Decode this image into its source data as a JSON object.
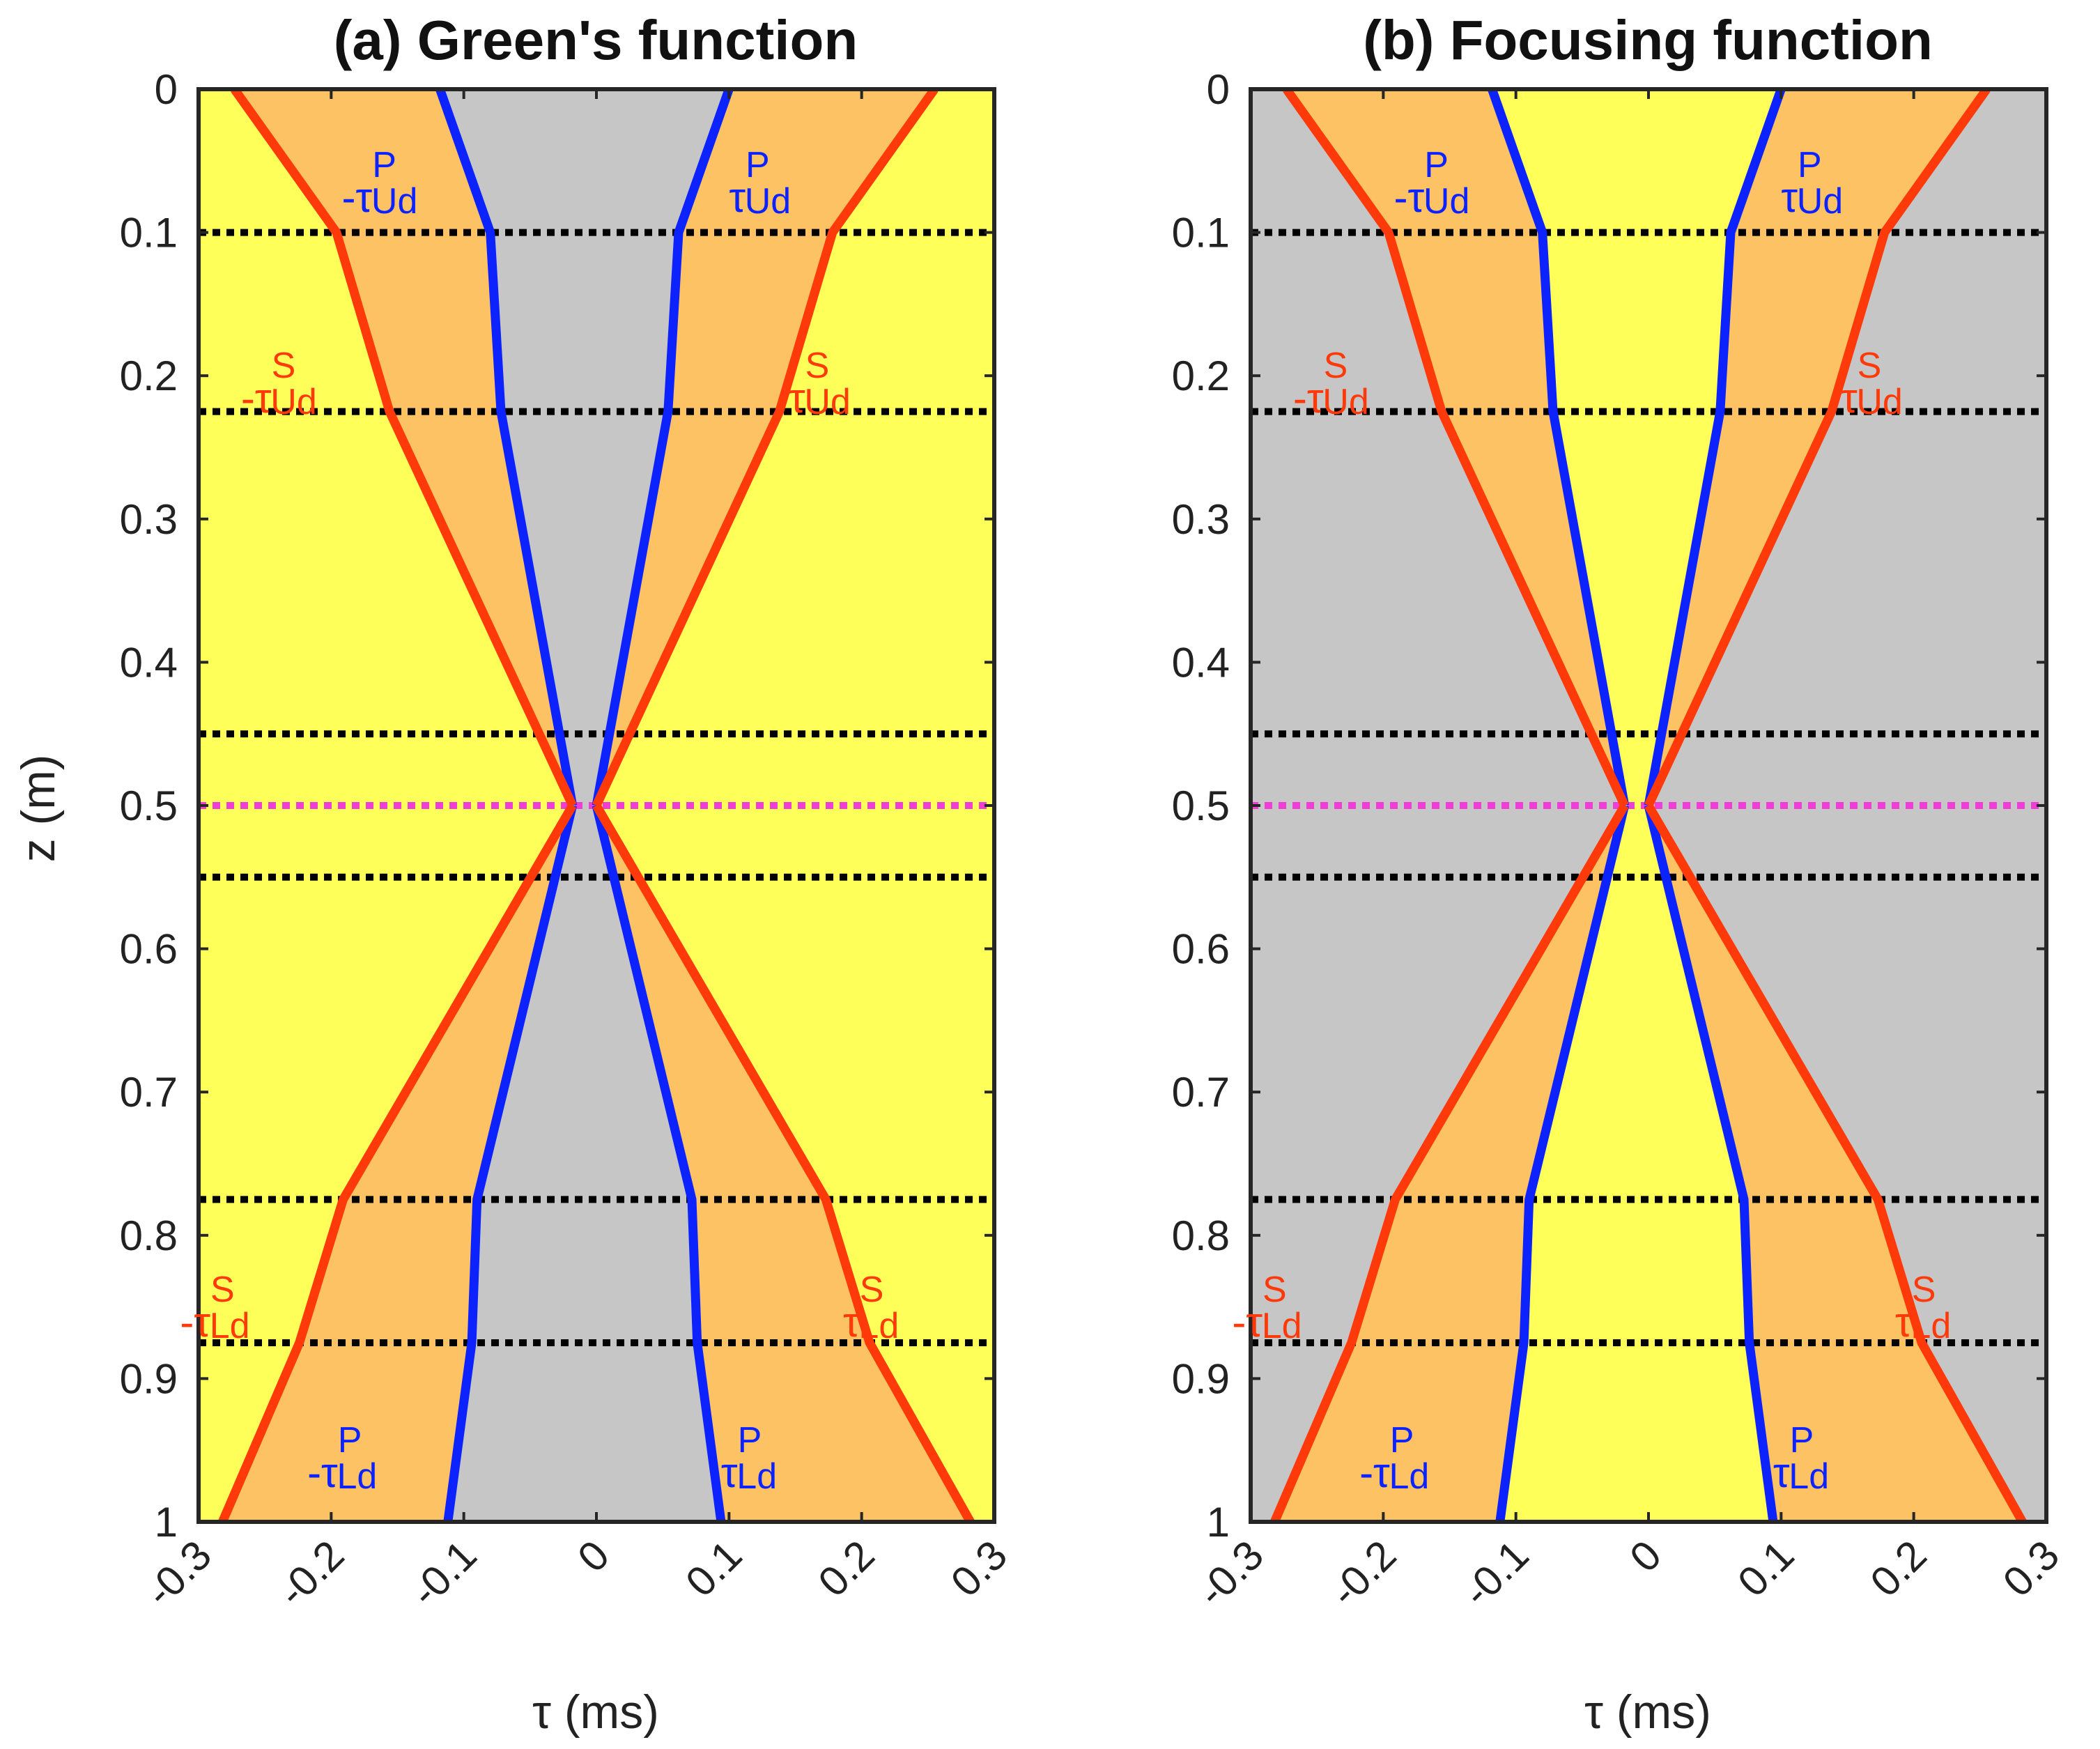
{
  "colors": {
    "yellow": "#ffff5a",
    "gray": "#c6c6c6",
    "orange_fill": "#fcc264",
    "p_line": "#0c23ff",
    "s_line": "#ff3a0a",
    "layer_line": "#000000",
    "focus_line": "#ee3ed6"
  },
  "chart_data": [
    {
      "type": "line",
      "title": "(a) Green's function",
      "xlabel": "τ (ms)",
      "ylabel": "z (m)",
      "xlim": [
        -0.3,
        0.3
      ],
      "ylim": [
        0,
        1
      ],
      "y_reversed": true,
      "xticks": [
        "-0.3",
        "-0.2",
        "-0.1",
        "0",
        "0.1",
        "0.2",
        "0.3"
      ],
      "yticks": [
        "0",
        "0.1",
        "0.2",
        "0.3",
        "0.4",
        "0.5",
        "0.6",
        "0.7",
        "0.8",
        "0.9",
        "1"
      ],
      "background": "yellow",
      "inner_region": "gray",
      "band_region": "orange_fill",
      "layer_boundaries_z": [
        0.1,
        0.225,
        0.45,
        0.55,
        0.775,
        0.875
      ],
      "focal_depth_z": 0.5,
      "series": [
        {
          "name": "tau_P_Ud",
          "color": "p_line",
          "points": [
            [
              0.1,
              0
            ],
            [
              0.062,
              0.1
            ],
            [
              0.054,
              0.225
            ],
            [
              0.0,
              0.5
            ]
          ]
        },
        {
          "name": "neg_tau_P_Ud",
          "color": "p_line",
          "points": [
            [
              -0.118,
              0
            ],
            [
              -0.08,
              0.1
            ],
            [
              -0.072,
              0.225
            ],
            [
              -0.018,
              0.5
            ]
          ]
        },
        {
          "name": "tau_S_Ud",
          "color": "s_line",
          "points": [
            [
              0.255,
              0
            ],
            [
              0.178,
              0.1
            ],
            [
              0.138,
              0.225
            ],
            [
              0.0,
              0.5
            ]
          ]
        },
        {
          "name": "neg_tau_S_Ud",
          "color": "s_line",
          "points": [
            [
              -0.273,
              0
            ],
            [
              -0.196,
              0.1
            ],
            [
              -0.156,
              0.225
            ],
            [
              -0.018,
              0.5
            ]
          ]
        },
        {
          "name": "tau_P_Ld",
          "color": "p_line",
          "points": [
            [
              0.0,
              0.5
            ],
            [
              0.072,
              0.775
            ],
            [
              0.076,
              0.875
            ],
            [
              0.094,
              1.0
            ]
          ]
        },
        {
          "name": "neg_tau_P_Ld",
          "color": "p_line",
          "points": [
            [
              -0.018,
              0.5
            ],
            [
              -0.09,
              0.775
            ],
            [
              -0.094,
              0.875
            ],
            [
              -0.112,
              1.0
            ]
          ]
        },
        {
          "name": "tau_S_Ld",
          "color": "s_line",
          "points": [
            [
              0.0,
              0.5
            ],
            [
              0.173,
              0.775
            ],
            [
              0.206,
              0.875
            ],
            [
              0.282,
              1.0
            ]
          ]
        },
        {
          "name": "neg_tau_S_Ld",
          "color": "s_line",
          "points": [
            [
              -0.018,
              0.5
            ],
            [
              -0.191,
              0.775
            ],
            [
              -0.224,
              0.875
            ],
            [
              -0.282,
              1.0
            ]
          ]
        }
      ],
      "annotations": [
        {
          "pre": "-τ",
          "sup": "P",
          "sub": "Ud",
          "color": "p_line",
          "x": -0.192,
          "z": 0.075
        },
        {
          "pre": "τ",
          "sup": "P",
          "sub": "Ud",
          "color": "p_line",
          "x": 0.1,
          "z": 0.075
        },
        {
          "pre": "-τ",
          "sup": "S",
          "sub": "Ud",
          "color": "s_line",
          "x": -0.268,
          "z": 0.215
        },
        {
          "pre": "τ",
          "sup": "S",
          "sub": "Ud",
          "color": "s_line",
          "x": 0.145,
          "z": 0.215
        },
        {
          "pre": "-τ",
          "sup": "S",
          "sub": "Ld",
          "color": "s_line",
          "x": -0.314,
          "z": 0.86
        },
        {
          "pre": "τ",
          "sup": "S",
          "sub": "Ld",
          "color": "s_line",
          "x": 0.186,
          "z": 0.86
        },
        {
          "pre": "-τ",
          "sup": "P",
          "sub": "Ld",
          "color": "p_line",
          "x": -0.218,
          "z": 0.965
        },
        {
          "pre": "τ",
          "sup": "P",
          "sub": "Ld",
          "color": "p_line",
          "x": 0.094,
          "z": 0.965
        }
      ]
    },
    {
      "type": "line",
      "title": "(b) Focusing function",
      "xlabel": "τ (ms)",
      "ylabel": "",
      "xlim": [
        -0.3,
        0.3
      ],
      "ylim": [
        0,
        1
      ],
      "y_reversed": true,
      "xticks": [
        "-0.3",
        "-0.2",
        "-0.1",
        "0",
        "0.1",
        "0.2",
        "0.3"
      ],
      "yticks": [
        "0",
        "0.1",
        "0.2",
        "0.3",
        "0.4",
        "0.5",
        "0.6",
        "0.7",
        "0.8",
        "0.9",
        "1"
      ],
      "background": "gray",
      "inner_region": "yellow",
      "band_region": "orange_fill",
      "layer_boundaries_z": [
        0.1,
        0.225,
        0.45,
        0.55,
        0.775,
        0.875
      ],
      "focal_depth_z": 0.5,
      "series": [
        {
          "name": "tau_P_Ud",
          "color": "p_line",
          "points": [
            [
              0.1,
              0
            ],
            [
              0.062,
              0.1
            ],
            [
              0.054,
              0.225
            ],
            [
              0.0,
              0.5
            ]
          ]
        },
        {
          "name": "neg_tau_P_Ud",
          "color": "p_line",
          "points": [
            [
              -0.118,
              0
            ],
            [
              -0.08,
              0.1
            ],
            [
              -0.072,
              0.225
            ],
            [
              -0.018,
              0.5
            ]
          ]
        },
        {
          "name": "tau_S_Ud",
          "color": "s_line",
          "points": [
            [
              0.255,
              0
            ],
            [
              0.178,
              0.1
            ],
            [
              0.138,
              0.225
            ],
            [
              0.0,
              0.5
            ]
          ]
        },
        {
          "name": "neg_tau_S_Ud",
          "color": "s_line",
          "points": [
            [
              -0.273,
              0
            ],
            [
              -0.196,
              0.1
            ],
            [
              -0.156,
              0.225
            ],
            [
              -0.018,
              0.5
            ]
          ]
        },
        {
          "name": "tau_P_Ld",
          "color": "p_line",
          "points": [
            [
              0.0,
              0.5
            ],
            [
              0.072,
              0.775
            ],
            [
              0.076,
              0.875
            ],
            [
              0.094,
              1.0
            ]
          ]
        },
        {
          "name": "neg_tau_P_Ld",
          "color": "p_line",
          "points": [
            [
              -0.018,
              0.5
            ],
            [
              -0.09,
              0.775
            ],
            [
              -0.094,
              0.875
            ],
            [
              -0.112,
              1.0
            ]
          ]
        },
        {
          "name": "tau_S_Ld",
          "color": "s_line",
          "points": [
            [
              0.0,
              0.5
            ],
            [
              0.173,
              0.775
            ],
            [
              0.206,
              0.875
            ],
            [
              0.282,
              1.0
            ]
          ]
        },
        {
          "name": "neg_tau_S_Ld",
          "color": "s_line",
          "points": [
            [
              -0.018,
              0.5
            ],
            [
              -0.191,
              0.775
            ],
            [
              -0.224,
              0.875
            ],
            [
              -0.282,
              1.0
            ]
          ]
        }
      ],
      "annotations": [
        {
          "pre": "-τ",
          "sup": "P",
          "sub": "Ud",
          "color": "p_line",
          "x": -0.192,
          "z": 0.075
        },
        {
          "pre": "τ",
          "sup": "P",
          "sub": "Ud",
          "color": "p_line",
          "x": 0.1,
          "z": 0.075
        },
        {
          "pre": "-τ",
          "sup": "S",
          "sub": "Ud",
          "color": "s_line",
          "x": -0.268,
          "z": 0.215
        },
        {
          "pre": "τ",
          "sup": "S",
          "sub": "Ud",
          "color": "s_line",
          "x": 0.145,
          "z": 0.215
        },
        {
          "pre": "-τ",
          "sup": "S",
          "sub": "Ld",
          "color": "s_line",
          "x": -0.314,
          "z": 0.86
        },
        {
          "pre": "τ",
          "sup": "S",
          "sub": "Ld",
          "color": "s_line",
          "x": 0.186,
          "z": 0.86
        },
        {
          "pre": "-τ",
          "sup": "P",
          "sub": "Ld",
          "color": "p_line",
          "x": -0.218,
          "z": 0.965
        },
        {
          "pre": "τ",
          "sup": "P",
          "sub": "Ld",
          "color": "p_line",
          "x": 0.094,
          "z": 0.965
        }
      ]
    }
  ]
}
